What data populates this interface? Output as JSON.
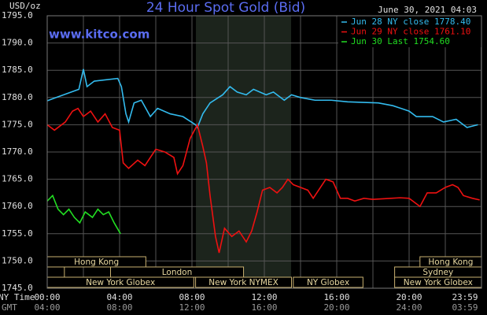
{
  "chart_data": {
    "type": "line",
    "title": "24 Hour Spot Gold (Bid)",
    "unit_label": "USD/oz",
    "timestamp": "June 30, 2021 04:03",
    "source": "www.kitco.com",
    "x_row_labels": [
      "NY Time",
      "GMT"
    ],
    "xlim": [
      0,
      24
    ],
    "xticks": [
      {
        "value": 0,
        "label": "00:00"
      },
      {
        "value": 4,
        "label": "04:00"
      },
      {
        "value": 8,
        "label": "08:00"
      },
      {
        "value": 12,
        "label": "12:00"
      },
      {
        "value": 16,
        "label": "16:00"
      },
      {
        "value": 20,
        "label": "20:00"
      },
      {
        "value": 23.983,
        "label": "23:59"
      }
    ],
    "x2ticklabels": [
      "04:00",
      "08:00",
      "12:00",
      "16:00",
      "20:00",
      "24:00",
      "03:59"
    ],
    "xminor": [
      2,
      6,
      10,
      14,
      18,
      22
    ],
    "ylim": [
      1745,
      1795
    ],
    "yticks": [
      {
        "value": 1745,
        "label": "1745.0"
      },
      {
        "value": 1750,
        "label": "1750.0"
      },
      {
        "value": 1755,
        "label": "1755.0"
      },
      {
        "value": 1760,
        "label": "1760.0"
      },
      {
        "value": 1765,
        "label": "1765.0"
      },
      {
        "value": 1770,
        "label": "1770.0"
      },
      {
        "value": 1775,
        "label": "1775.0"
      },
      {
        "value": 1780,
        "label": "1780.0"
      },
      {
        "value": 1785,
        "label": "1785.0"
      },
      {
        "value": 1790,
        "label": "1790.0"
      },
      {
        "value": 1795,
        "label": "1795.0"
      }
    ],
    "grid": true,
    "sessions": [
      "Hong Kong",
      "London",
      "New York Globex",
      "New York NYMEX",
      "NY Globex",
      "Hong Kong",
      "Sydney",
      "New York Globex"
    ],
    "series": [
      {
        "name": "Jun 28 NY close 1778.40",
        "color": "#33bbee",
        "x": [
          0,
          0.5,
          1.75,
          2,
          2.2,
          2.6,
          3.9,
          4.1,
          4.35,
          4.5,
          4.8,
          5.2,
          5.7,
          6.1,
          6.8,
          7.5,
          8.2,
          8.3,
          8.6,
          9,
          9.7,
          10.1,
          10.5,
          11,
          11.4,
          12.1,
          12.5,
          13.1,
          13.5,
          14,
          14.8,
          15.7,
          16.6,
          18.3,
          19.1,
          20,
          20.4,
          21.3,
          21.9,
          22.6,
          23.2,
          23.8
        ],
        "values": [
          1779.4,
          1780,
          1781.5,
          1785.2,
          1782,
          1783,
          1783.5,
          1782,
          1777,
          1775.5,
          1779,
          1779.5,
          1776.5,
          1778,
          1777,
          1776.5,
          1775,
          1774.5,
          1777,
          1779,
          1780.5,
          1782,
          1781,
          1780.5,
          1781.5,
          1780.5,
          1781,
          1779.5,
          1780.5,
          1780,
          1779.5,
          1779.5,
          1779.2,
          1779,
          1778.5,
          1777.5,
          1776.5,
          1776.5,
          1775.5,
          1776,
          1774.5,
          1775
        ]
      },
      {
        "name": "Jun 29 NY close 1761.10",
        "color": "#ee1111",
        "x": [
          0,
          0.4,
          1,
          1.4,
          1.7,
          2,
          2.4,
          2.8,
          3.2,
          3.6,
          4,
          4.2,
          4.5,
          5,
          5.4,
          6,
          6.5,
          7,
          7.2,
          7.5,
          7.9,
          8.3,
          8.6,
          8.8,
          9,
          9.3,
          9.5,
          9.8,
          10.2,
          10.6,
          11,
          11.3,
          11.6,
          11.9,
          12.3,
          12.7,
          13,
          13.3,
          13.6,
          14,
          14.4,
          14.7,
          15,
          15.4,
          15.8,
          16.2,
          16.6,
          17,
          17.5,
          18,
          19,
          19.5,
          20,
          20.6,
          21,
          21.5,
          22,
          22.4,
          22.7,
          23,
          23.5,
          23.9
        ],
        "values": [
          1775,
          1774,
          1775.5,
          1777.5,
          1778,
          1776.5,
          1777.5,
          1775.5,
          1777,
          1774.5,
          1774,
          1768,
          1767,
          1768.5,
          1767.5,
          1770.5,
          1770,
          1769,
          1766,
          1767.5,
          1772.5,
          1775,
          1771,
          1768,
          1762,
          1754.5,
          1751.5,
          1756,
          1754.5,
          1755.5,
          1753.5,
          1755.5,
          1759,
          1763,
          1763.5,
          1762.5,
          1763.5,
          1765,
          1764,
          1763.5,
          1763,
          1761.5,
          1763,
          1765,
          1764.5,
          1761.5,
          1761.5,
          1761,
          1761.5,
          1761.3,
          1761.5,
          1761.6,
          1761.5,
          1760,
          1762.5,
          1762.5,
          1763.5,
          1764,
          1763.5,
          1762,
          1761.5,
          1761.2
        ]
      },
      {
        "name": "Jun 30 Last 1754.60",
        "color": "#22dd22",
        "x": [
          0,
          0.3,
          0.6,
          0.9,
          1.2,
          1.5,
          1.8,
          2.1,
          2.5,
          2.8,
          3.1,
          3.4,
          3.7,
          4.05
        ],
        "values": [
          1761,
          1762,
          1759.5,
          1758.5,
          1759.5,
          1758,
          1757,
          1759,
          1758,
          1759.5,
          1758.5,
          1759,
          1757,
          1755
        ]
      }
    ]
  }
}
